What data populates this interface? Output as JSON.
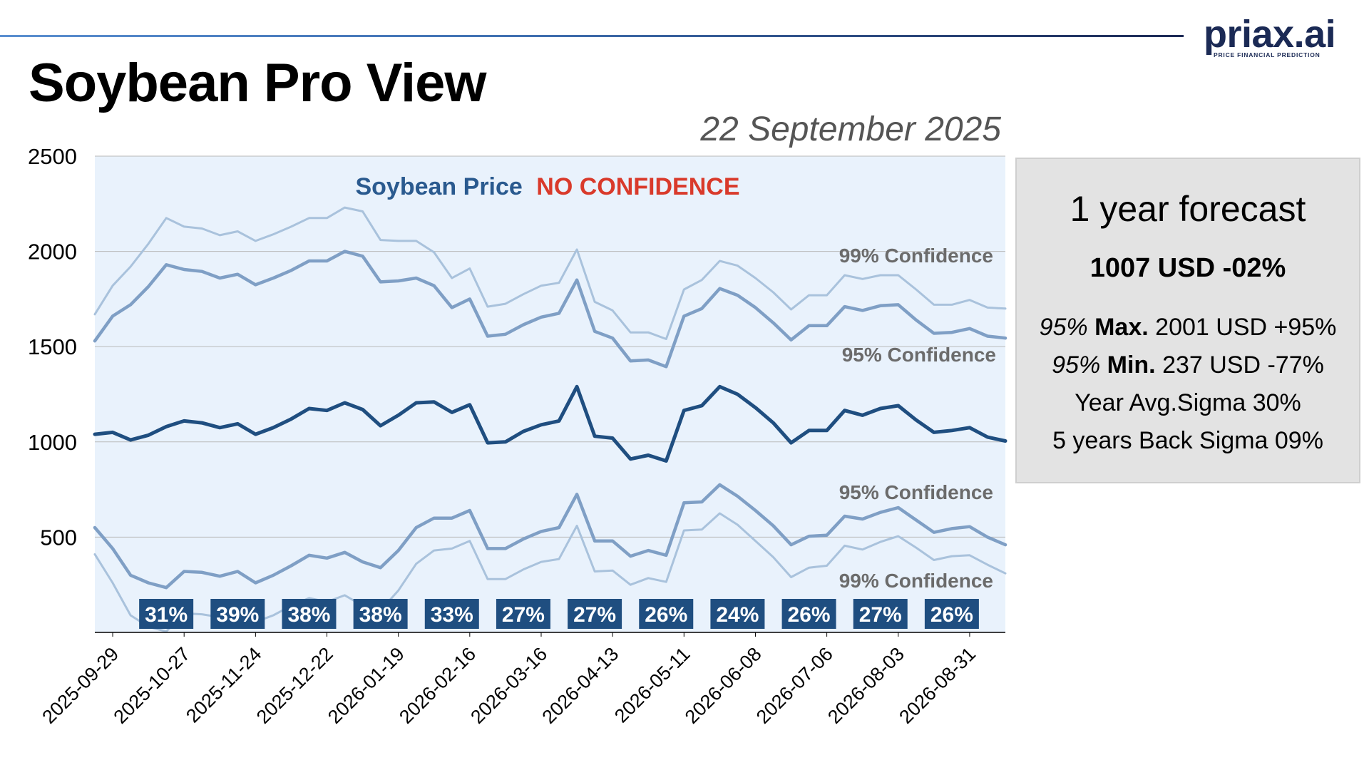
{
  "header": {
    "title": "Soybean Pro View",
    "date": "22 September 2025",
    "logo_text": "priax.ai",
    "logo_tagline": "PRICE FINANCIAL PREDICTION"
  },
  "forecast": {
    "title": "1 year forecast",
    "main": "1007 USD -02%",
    "max_prefix": "95%",
    "max_label": "Max.",
    "max_value": "2001 USD +95%",
    "min_prefix": "95%",
    "min_label": "Min.",
    "min_value": "237 USD -77%",
    "sigma": "Year Avg.Sigma 30%",
    "back_sigma": "5 years Back Sigma 09%"
  },
  "colors": {
    "price": "#1f4e80",
    "band95": "#7f9fc5",
    "band99": "#a9c2dc",
    "no_confidence": "#d93a2b",
    "plot_bg": "#e9f2fc",
    "badge_bg": "#1f4e80"
  },
  "chart_data": {
    "type": "line",
    "title_part1": "Soybean Price",
    "title_part2": "NO CONFIDENCE",
    "ylim": [
      0,
      2500
    ],
    "yticks": [
      500,
      1000,
      1500,
      2000,
      2500
    ],
    "xticks": [
      "2025-09-29",
      "2025-10-27",
      "2025-11-24",
      "2025-12-22",
      "2026-01-19",
      "2026-02-16",
      "2026-03-16",
      "2026-04-13",
      "2026-05-11",
      "2026-06-08",
      "2026-07-06",
      "2026-08-03",
      "2026-08-31"
    ],
    "grid": true,
    "band_labels": {
      "upper99": "99% Confidence",
      "upper95": "95% Confidence",
      "lower95": "95% Confidence",
      "lower99": "99% Confidence"
    },
    "x_start": "2025-09-22",
    "x_step_days": 7,
    "series": [
      {
        "key": "upper99",
        "values": [
          1670,
          1820,
          1920,
          2040,
          2175,
          2130,
          2120,
          2085,
          2105,
          2055,
          2090,
          2130,
          2175,
          2175,
          2230,
          2210,
          2060,
          2055,
          2055,
          1995,
          1860,
          1910,
          1710,
          1725,
          1775,
          1820,
          1835,
          2010,
          1735,
          1690,
          1575,
          1575,
          1540,
          1800,
          1850,
          1950,
          1925,
          1860,
          1785,
          1695,
          1770,
          1770,
          1875,
          1855,
          1875,
          1875,
          1800,
          1720,
          1720,
          1745,
          1705,
          1700
        ]
      },
      {
        "key": "upper95",
        "values": [
          1530,
          1660,
          1720,
          1815,
          1930,
          1905,
          1895,
          1860,
          1880,
          1825,
          1860,
          1900,
          1950,
          1950,
          2000,
          1975,
          1840,
          1845,
          1860,
          1820,
          1705,
          1750,
          1555,
          1565,
          1615,
          1655,
          1675,
          1850,
          1580,
          1545,
          1425,
          1430,
          1395,
          1660,
          1700,
          1805,
          1770,
          1705,
          1625,
          1535,
          1610,
          1610,
          1710,
          1690,
          1715,
          1720,
          1640,
          1570,
          1575,
          1595,
          1555,
          1545
        ]
      },
      {
        "key": "price",
        "values": [
          1040,
          1050,
          1010,
          1035,
          1080,
          1110,
          1100,
          1075,
          1095,
          1040,
          1075,
          1120,
          1175,
          1165,
          1205,
          1170,
          1085,
          1140,
          1205,
          1210,
          1155,
          1195,
          995,
          1000,
          1055,
          1090,
          1110,
          1290,
          1030,
          1020,
          910,
          930,
          900,
          1165,
          1190,
          1290,
          1250,
          1180,
          1100,
          995,
          1060,
          1060,
          1165,
          1140,
          1175,
          1190,
          1115,
          1050,
          1060,
          1075,
          1025,
          1005
        ]
      },
      {
        "key": "lower95",
        "values": [
          550,
          440,
          300,
          260,
          235,
          320,
          315,
          295,
          320,
          260,
          300,
          350,
          405,
          390,
          420,
          370,
          340,
          430,
          550,
          600,
          600,
          640,
          440,
          440,
          490,
          530,
          550,
          725,
          480,
          480,
          400,
          430,
          405,
          680,
          685,
          775,
          715,
          640,
          560,
          460,
          505,
          510,
          610,
          595,
          630,
          655,
          590,
          525,
          545,
          555,
          500,
          460
        ]
      },
      {
        "key": "lower99",
        "values": [
          410,
          260,
          90,
          30,
          5,
          100,
          95,
          80,
          110,
          55,
          90,
          140,
          180,
          160,
          195,
          140,
          115,
          220,
          360,
          430,
          440,
          480,
          280,
          280,
          330,
          370,
          385,
          560,
          320,
          325,
          250,
          285,
          265,
          535,
          540,
          625,
          565,
          480,
          395,
          290,
          340,
          350,
          455,
          435,
          475,
          505,
          445,
          380,
          400,
          405,
          355,
          310
        ]
      }
    ],
    "volatility_badges": [
      {
        "x": "2025-10-20",
        "label": "31%"
      },
      {
        "x": "2025-11-17",
        "label": "39%"
      },
      {
        "x": "2025-12-15",
        "label": "38%"
      },
      {
        "x": "2026-01-12",
        "label": "38%"
      },
      {
        "x": "2026-02-09",
        "label": "33%"
      },
      {
        "x": "2026-03-09",
        "label": "27%"
      },
      {
        "x": "2026-04-06",
        "label": "27%"
      },
      {
        "x": "2026-05-04",
        "label": "26%"
      },
      {
        "x": "2026-06-01",
        "label": "24%"
      },
      {
        "x": "2026-06-29",
        "label": "26%"
      },
      {
        "x": "2026-07-27",
        "label": "27%"
      },
      {
        "x": "2026-08-24",
        "label": "26%"
      }
    ]
  }
}
